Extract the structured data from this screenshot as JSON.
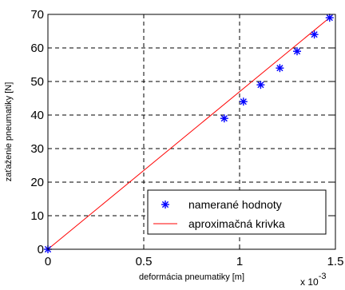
{
  "chart_data": {
    "type": "scatter",
    "xlabel": "deformácia pneumatiky [m]",
    "ylabel": "zaťaženie pneumatiky [N]",
    "xlim": [
      0,
      0.0015
    ],
    "ylim": [
      0,
      70
    ],
    "x_multiplier_label": "x 10",
    "x_multiplier_exponent": "-3",
    "x_tick_labels": [
      "0",
      "0.5",
      "1",
      "1.5"
    ],
    "x_ticks": [
      0,
      0.0005,
      0.001,
      0.0015
    ],
    "y_ticks": [
      0,
      10,
      20,
      30,
      40,
      50,
      60,
      70
    ],
    "grid": true,
    "legend_position": "bottom-right",
    "series": [
      {
        "name": "namerané hodnoty",
        "kind": "markers",
        "marker": "asterisk",
        "color": "#0000ff",
        "x": [
          0,
          0.00092,
          0.00102,
          0.00111,
          0.00121,
          0.0013,
          0.00139,
          0.00147
        ],
        "y": [
          0,
          39,
          44,
          49,
          54,
          59,
          64,
          69
        ]
      },
      {
        "name": "aproximačná krivka",
        "kind": "line",
        "color": "#ff0000",
        "x": [
          0,
          0.00148
        ],
        "y": [
          0,
          69.5
        ]
      }
    ]
  }
}
